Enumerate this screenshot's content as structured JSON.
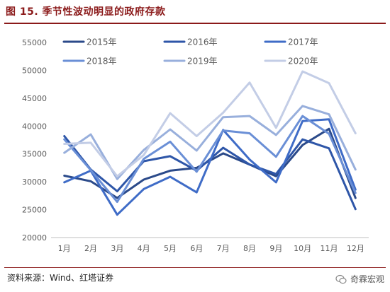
{
  "title": "图 15. 季节性波动明显的政府存款",
  "source": "资料来源：Wind、红塔证券",
  "watermark": "奇霖宏观",
  "chart_data": {
    "type": "line",
    "categories": [
      "1月",
      "2月",
      "3月",
      "4月",
      "5月",
      "6月",
      "7月",
      "8月",
      "9月",
      "10月",
      "11月",
      "12月"
    ],
    "ylim": [
      20000,
      55000
    ],
    "yticks": [
      20000,
      25000,
      30000,
      35000,
      40000,
      45000,
      50000,
      55000
    ],
    "grid": false,
    "legend_position": "top",
    "series": [
      {
        "name": "2015年",
        "color": "#2b4a8a",
        "values": [
          31100,
          30100,
          27100,
          30400,
          32000,
          32500,
          35100,
          33100,
          31000,
          36600,
          39500,
          27100
        ]
      },
      {
        "name": "2016年",
        "color": "#2e56a8",
        "values": [
          38200,
          32200,
          28300,
          33700,
          34600,
          32000,
          36100,
          33100,
          31400,
          37600,
          36000,
          25100
        ]
      },
      {
        "name": "2017年",
        "color": "#3f6cc7",
        "values": [
          29900,
          32000,
          24100,
          28700,
          30900,
          28100,
          39300,
          34000,
          29900,
          40900,
          41200,
          28600
        ]
      },
      {
        "name": "2018年",
        "color": "#6a8fd6",
        "values": [
          37600,
          32100,
          26400,
          34100,
          37200,
          31800,
          39200,
          38700,
          34500,
          41800,
          38600,
          28000
        ]
      },
      {
        "name": "2019年",
        "color": "#98afdc",
        "values": [
          35200,
          38500,
          30500,
          35700,
          39400,
          35600,
          41600,
          41800,
          38400,
          43600,
          42100,
          32200
        ]
      },
      {
        "name": "2020年",
        "color": "#c3cde6",
        "values": [
          36800,
          37000,
          31000,
          34800,
          42300,
          38200,
          42400,
          47800,
          39700,
          49800,
          47700,
          38700
        ]
      }
    ]
  }
}
